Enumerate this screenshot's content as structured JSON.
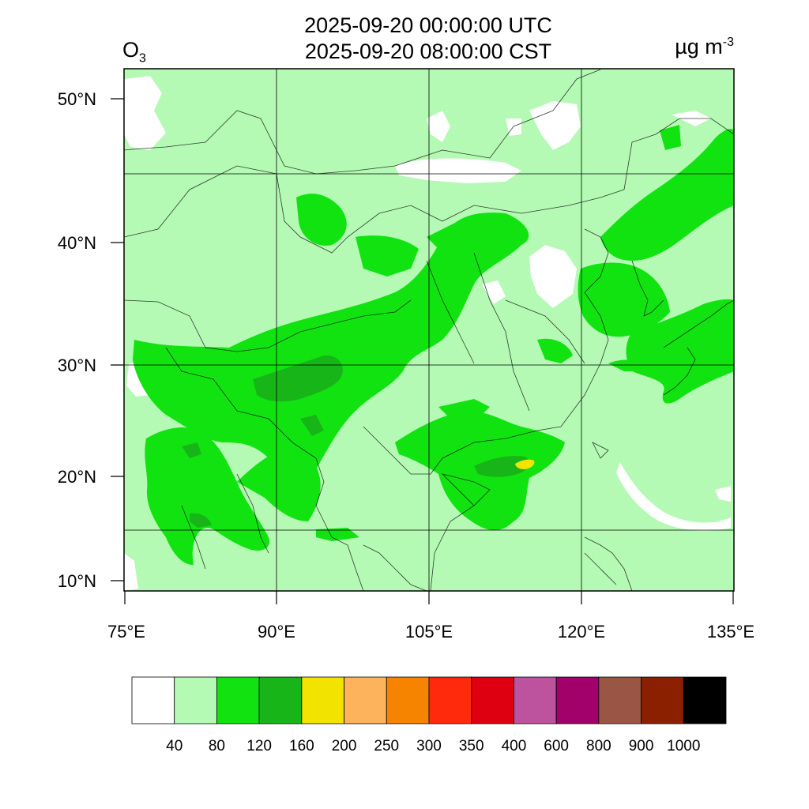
{
  "header": {
    "time_utc": "2025-09-20 00:00:00 UTC",
    "time_cst": "2025-09-20 08:00:00 CST",
    "variable": "O",
    "variable_sub": "3",
    "units": "µg m",
    "units_sup": "-3"
  },
  "axes": {
    "lat_labels": [
      "50°N",
      "40°N",
      "30°N",
      "20°N",
      "10°N"
    ],
    "lon_labels": [
      "75°E",
      "90°E",
      "105°E",
      "120°E",
      "135°E"
    ]
  },
  "colorbar": {
    "colors": [
      "#ffffff",
      "#b4f9b4",
      "#11e311",
      "#18b518",
      "#f3e400",
      "#fdb35c",
      "#f78400",
      "#ff2a0c",
      "#de0010",
      "#bd539e",
      "#a2006b",
      "#9b5545",
      "#8b2000",
      "#000000"
    ],
    "labels": [
      "40",
      "80",
      "120",
      "160",
      "200",
      "250",
      "300",
      "350",
      "400",
      "600",
      "800",
      "900",
      "1000"
    ]
  }
}
